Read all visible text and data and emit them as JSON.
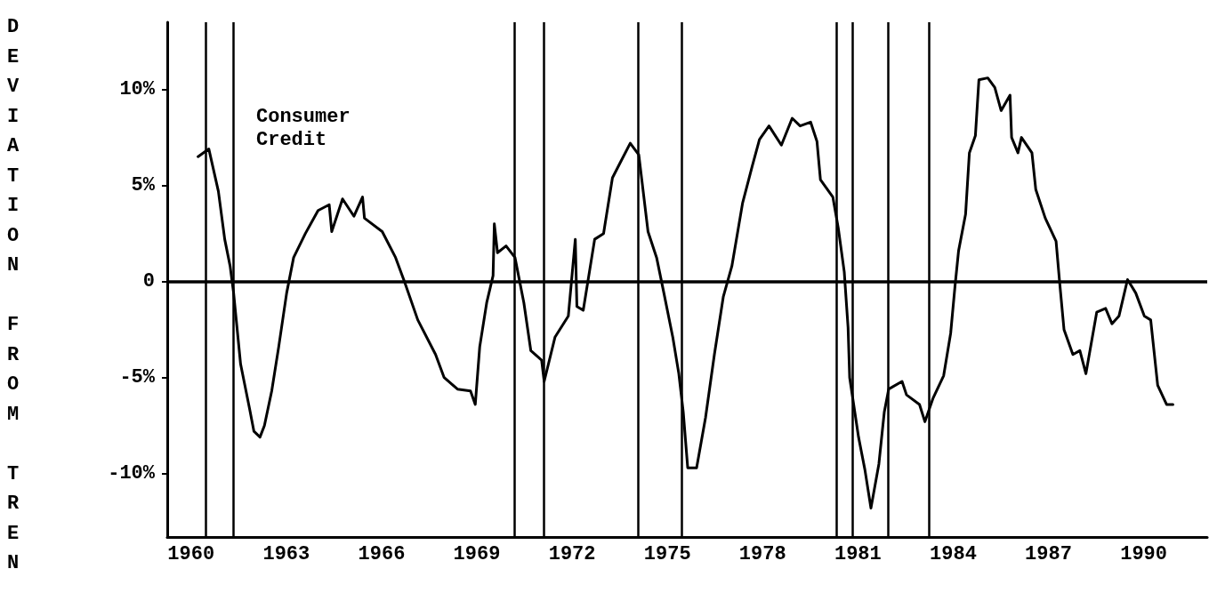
{
  "chart_data": {
    "type": "line",
    "ylabel": "DEVIATION FROM TREN",
    "annotations": [
      "Consumer\nCredit"
    ],
    "xlim": [
      1959.25,
      1992
    ],
    "xticks": [
      1960,
      1963,
      1966,
      1969,
      1972,
      1975,
      1978,
      1981,
      1984,
      1987,
      1990
    ],
    "ylim": [
      -13.3,
      13.5
    ],
    "yticks": [
      {
        "value": -10,
        "label": "-10%"
      },
      {
        "value": -5,
        "label": "-5%"
      },
      {
        "value": 0,
        "label": "0"
      },
      {
        "value": 5,
        "label": "5%"
      },
      {
        "value": 10,
        "label": "10%"
      }
    ],
    "marker": "none",
    "line_style": "solid",
    "ref_lines": [
      {
        "axis": "y",
        "value": 0,
        "color": "#000000"
      },
      {
        "axis": "x",
        "value": 1960.45,
        "color": "#000000"
      },
      {
        "axis": "x",
        "value": 1961.34,
        "color": "#000000"
      },
      {
        "axis": "x",
        "value": 1970.18,
        "color": "#000000"
      },
      {
        "axis": "x",
        "value": 1971.12,
        "color": "#000000"
      },
      {
        "axis": "x",
        "value": 1974.08,
        "color": "#000000"
      },
      {
        "axis": "x",
        "value": 1975.45,
        "color": "#000000"
      },
      {
        "axis": "x",
        "value": 1980.32,
        "color": "#000000"
      },
      {
        "axis": "x",
        "value": 1980.83,
        "color": "#000000"
      },
      {
        "axis": "x",
        "value": 1981.94,
        "color": "#000000"
      },
      {
        "axis": "x",
        "value": 1983.25,
        "color": "#000000"
      }
    ],
    "series": [
      {
        "color": "#000000",
        "x": [
          1960.22,
          1960.56,
          1960.86,
          1961.06,
          1961.23,
          1961.34,
          1961.56,
          1961.84,
          1961.98,
          1962.17,
          1962.31,
          1962.54,
          1962.76,
          1963.01,
          1963.23,
          1963.6,
          1964.0,
          1964.35,
          1964.43,
          1964.77,
          1965.13,
          1965.4,
          1965.46,
          1966.02,
          1966.44,
          1966.72,
          1967.14,
          1967.7,
          1967.97,
          1968.39,
          1968.8,
          1968.95,
          1969.09,
          1969.31,
          1969.51,
          1969.55,
          1969.65,
          1969.92,
          1970.2,
          1970.48,
          1970.7,
          1971.04,
          1971.12,
          1971.46,
          1971.88,
          1972.1,
          1972.15,
          1972.35,
          1972.71,
          1972.99,
          1973.27,
          1973.55,
          1973.83,
          1974.1,
          1974.39,
          1974.66,
          1974.89,
          1975.17,
          1975.36,
          1975.5,
          1975.64,
          1975.92,
          1976.2,
          1976.48,
          1976.76,
          1977.03,
          1977.37,
          1977.67,
          1977.9,
          1978.2,
          1978.59,
          1978.93,
          1979.18,
          1979.51,
          1979.71,
          1979.82,
          1980.21,
          1980.38,
          1980.57,
          1980.69,
          1980.74,
          1981.02,
          1981.22,
          1981.41,
          1981.66,
          1981.83,
          1981.97,
          1982.39,
          1982.53,
          1982.94,
          1983.11,
          1983.36,
          1983.7,
          1983.92,
          1984.06,
          1984.17,
          1984.39,
          1984.51,
          1984.7,
          1984.81,
          1985.09,
          1985.31,
          1985.51,
          1985.79,
          1985.84,
          1986.04,
          1986.15,
          1986.48,
          1986.6,
          1986.9,
          1987.24,
          1987.35,
          1987.49,
          1987.77,
          1987.99,
          1988.18,
          1988.52,
          1988.8,
          1989.0,
          1989.22,
          1989.49,
          1989.75,
          1990.02,
          1990.22,
          1990.44,
          1990.72,
          1990.92
        ],
        "values": [
          6.5,
          6.9,
          4.7,
          2.2,
          0.8,
          -0.6,
          -4.3,
          -6.6,
          -7.8,
          -8.1,
          -7.5,
          -5.7,
          -3.4,
          -0.6,
          1.25,
          2.5,
          3.7,
          4.0,
          2.6,
          4.3,
          3.4,
          4.4,
          3.3,
          2.6,
          1.25,
          0,
          -2.0,
          -3.8,
          -5,
          -5.6,
          -5.7,
          -6.4,
          -3.4,
          -1.1,
          0.3,
          3.0,
          1.5,
          1.85,
          1.25,
          -1.1,
          -3.6,
          -4.1,
          -5.2,
          -2.9,
          -1.8,
          2.2,
          -1.3,
          -1.5,
          2.2,
          2.5,
          5.4,
          6.3,
          7.2,
          6.6,
          2.6,
          1.25,
          -0.6,
          -2.9,
          -4.8,
          -6.8,
          -9.7,
          -9.7,
          -7.1,
          -3.8,
          -0.8,
          0.8,
          4.1,
          6.0,
          7.4,
          8.1,
          7.1,
          8.5,
          8.1,
          8.3,
          7.3,
          5.3,
          4.4,
          2.8,
          0.5,
          -2.4,
          -5,
          -8.1,
          -9.8,
          -11.8,
          -9.5,
          -6.8,
          -5.6,
          -5.2,
          -5.9,
          -6.4,
          -7.3,
          -6.1,
          -4.9,
          -2.7,
          -0.2,
          1.6,
          3.5,
          6.7,
          7.6,
          10.5,
          10.6,
          10.1,
          8.9,
          9.7,
          7.5,
          6.7,
          7.5,
          6.7,
          4.8,
          3.3,
          2.1,
          0,
          -2.5,
          -3.8,
          -3.6,
          -4.8,
          -1.6,
          -1.4,
          -2.2,
          -1.8,
          0.1,
          -0.6,
          -1.8,
          -2.0,
          -5.4,
          -6.4,
          -6.4
        ]
      }
    ]
  }
}
